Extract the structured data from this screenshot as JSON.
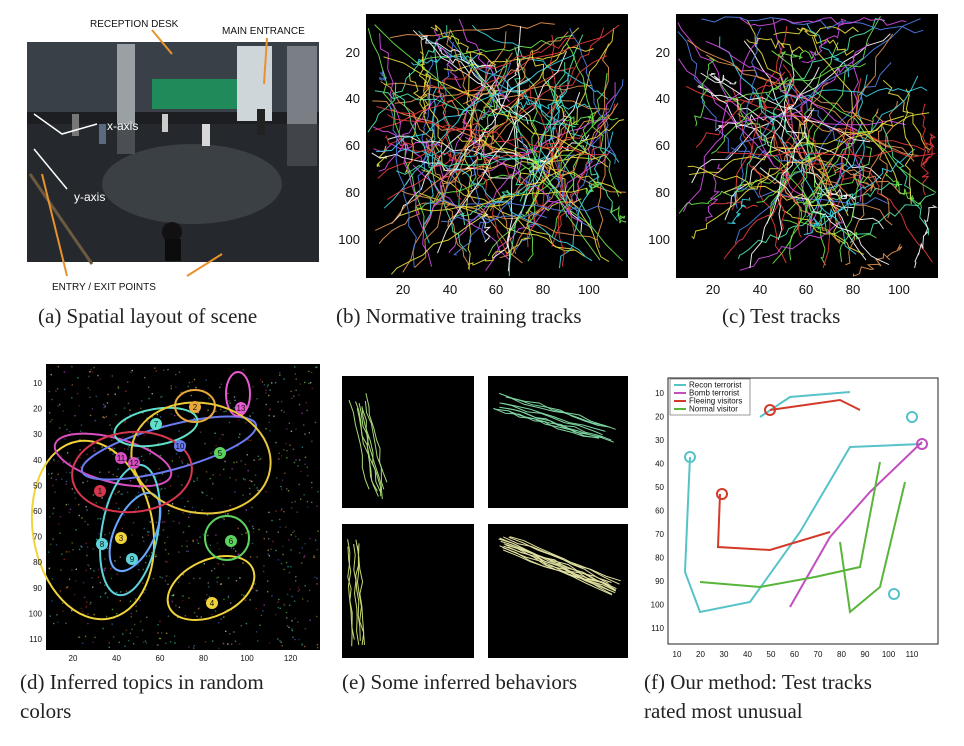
{
  "captions": {
    "a": "(a) Spatial layout of scene",
    "b": "(b) Normative training tracks",
    "c": "(c) Test tracks",
    "d_line1": "(d) Inferred topics in random",
    "d_line2": "colors",
    "e": "(e) Some inferred behaviors",
    "f_line1": "(f) Our method: Test tracks",
    "f_line2": "rated most unusual"
  },
  "photo_labels": {
    "reception": "RECEPTION DESK",
    "entrance": "MAIN ENTRANCE",
    "xaxis": "x-axis",
    "yaxis": "y-axis",
    "entry": "ENTRY / EXIT POINTS"
  },
  "ticks": {
    "bc_x": [
      "20",
      "40",
      "60",
      "80",
      "100"
    ],
    "bc_y": [
      "20",
      "40",
      "60",
      "80",
      "100"
    ],
    "d_x": [
      "20",
      "40",
      "60",
      "80",
      "100",
      "120"
    ],
    "d_y": [
      "10",
      "20",
      "30",
      "40",
      "50",
      "60",
      "70",
      "80",
      "90",
      "100",
      "110"
    ],
    "f_x": [
      "10",
      "20",
      "30",
      "40",
      "50",
      "60",
      "70",
      "80",
      "90",
      "100",
      "110"
    ],
    "f_y": [
      "10",
      "20",
      "30",
      "40",
      "50",
      "60",
      "70",
      "80",
      "90",
      "100",
      "110"
    ]
  },
  "topic_labels": [
    "1",
    "2",
    "3",
    "4",
    "5",
    "6",
    "7",
    "8",
    "9",
    "10",
    "11",
    "12",
    "13"
  ],
  "legend_f": {
    "items": [
      "Recon terrorist",
      "Bomb terrorist",
      "Fleeing visitors",
      "Normal visitor"
    ],
    "colors": [
      "#56c3c9",
      "#c24ec0",
      "#d43a2a",
      "#58b53a"
    ]
  },
  "colors": {
    "plot_bg": "#000000",
    "track_palette": [
      "#e83c3c",
      "#3cd6e8",
      "#e8e03c",
      "#6ce84e",
      "#d64ee8",
      "#4e7fe8",
      "#e8944e",
      "#4ee8a8",
      "#ffffff"
    ]
  }
}
